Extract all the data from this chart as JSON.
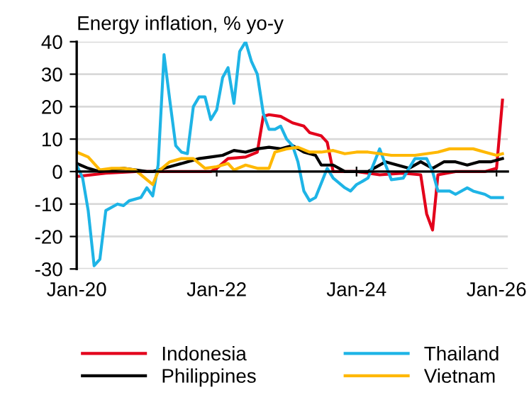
{
  "chart_data": {
    "type": "line",
    "title": "Energy inflation, % yo-y",
    "ylim": [
      -30,
      40
    ],
    "yticks": [
      -30,
      -20,
      -10,
      0,
      10,
      20,
      30,
      40
    ],
    "xlim": [
      "2020-01",
      "2026-03"
    ],
    "xticks": [
      {
        "value": "2020-01",
        "label": "Jan-20"
      },
      {
        "value": "2022-01",
        "label": "Jan-22"
      },
      {
        "value": "2024-01",
        "label": "Jan-24"
      },
      {
        "value": "2026-01",
        "label": "Jan-26"
      }
    ],
    "grid": "y",
    "legend": "bottom",
    "marker": "none",
    "line_style": "solid",
    "series": [
      {
        "name": "Indonesia",
        "color": "#e3001b",
        "x": [
          "2020-01",
          "2020-06",
          "2020-11",
          "2021-07",
          "2021-12",
          "2022-01",
          "2022-03",
          "2022-06",
          "2022-08",
          "2022-09",
          "2022-10",
          "2022-12",
          "2023-02",
          "2023-04",
          "2023-05",
          "2023-07",
          "2023-08",
          "2023-09",
          "2024-01",
          "2024-05",
          "2024-09",
          "2024-12",
          "2025-01",
          "2025-02",
          "2025-03",
          "2025-06",
          "2025-11",
          "2026-01",
          "2026-02"
        ],
        "values": [
          -1.5,
          -0.5,
          0,
          0,
          0,
          1,
          4,
          4.5,
          6,
          17,
          17.5,
          17,
          15,
          14,
          12,
          11,
          9,
          0,
          0,
          -1,
          -0.5,
          -1,
          -13,
          -18,
          -1,
          0,
          0,
          1,
          22
        ]
      },
      {
        "name": "Philippines",
        "color": "#000000",
        "x": [
          "2020-01",
          "2020-03",
          "2020-05",
          "2020-07",
          "2020-09",
          "2020-11",
          "2021-01",
          "2021-02",
          "2021-04",
          "2021-06",
          "2021-08",
          "2021-10",
          "2021-12",
          "2022-02",
          "2022-04",
          "2022-06",
          "2022-08",
          "2022-10",
          "2022-12",
          "2023-02",
          "2023-04",
          "2023-06",
          "2023-07",
          "2023-09",
          "2023-11",
          "2024-03",
          "2024-06",
          "2024-08",
          "2024-10",
          "2024-12",
          "2025-02",
          "2025-04",
          "2025-06",
          "2025-08",
          "2025-10",
          "2025-12",
          "2026-02"
        ],
        "values": [
          2.5,
          1,
          0,
          0.5,
          1,
          0.5,
          0,
          0,
          1,
          2,
          3,
          4,
          4.5,
          5,
          6.5,
          6,
          7,
          7.5,
          7,
          8,
          6,
          5,
          2,
          2,
          0,
          0,
          3,
          2,
          1,
          3,
          1,
          3,
          3,
          2,
          3,
          3,
          4
        ]
      },
      {
        "name": "Thailand",
        "color": "#1eb4e6",
        "x": [
          "2020-01",
          "2020-02",
          "2020-03",
          "2020-04",
          "2020-05",
          "2020-06",
          "2020-08",
          "2020-09",
          "2020-10",
          "2020-12",
          "2021-01",
          "2021-02",
          "2021-03",
          "2021-04",
          "2021-05",
          "2021-06",
          "2021-07",
          "2021-08",
          "2021-09",
          "2021-10",
          "2021-11",
          "2021-12",
          "2022-01",
          "2022-02",
          "2022-03",
          "2022-04",
          "2022-05",
          "2022-06",
          "2022-07",
          "2022-08",
          "2022-09",
          "2022-10",
          "2022-11",
          "2022-12",
          "2023-01",
          "2023-02",
          "2023-03",
          "2023-04",
          "2023-05",
          "2023-06",
          "2023-08",
          "2023-09",
          "2023-11",
          "2023-12",
          "2024-01",
          "2024-02",
          "2024-03",
          "2024-05",
          "2024-06",
          "2024-07",
          "2024-09",
          "2024-10",
          "2024-11",
          "2025-01",
          "2025-02",
          "2025-03",
          "2025-05",
          "2025-06",
          "2025-08",
          "2025-09",
          "2025-11",
          "2025-12",
          "2026-02"
        ],
        "values": [
          2,
          -2,
          -12,
          -29,
          -27,
          -12,
          -10,
          -10.5,
          -9,
          -8,
          -5,
          -7.5,
          2,
          36,
          22,
          8,
          6,
          5.5,
          20,
          23,
          23,
          16,
          19,
          29,
          32,
          21,
          37,
          40,
          34,
          30,
          18,
          13,
          13,
          14,
          10,
          8,
          3,
          -6,
          -9,
          -8,
          1,
          -2,
          -5,
          -6,
          -4,
          -3,
          -2,
          7,
          2,
          -2.5,
          -2,
          1,
          4,
          4,
          0,
          -6,
          -6,
          -7,
          -5,
          -6,
          -7,
          -8,
          -8
        ]
      },
      {
        "name": "Vietnam",
        "color": "#ffb800",
        "x": [
          "2020-01",
          "2020-03",
          "2020-05",
          "2020-07",
          "2020-09",
          "2020-11",
          "2021-02",
          "2021-03",
          "2021-05",
          "2021-07",
          "2021-09",
          "2021-11",
          "2022-01",
          "2022-03",
          "2022-04",
          "2022-06",
          "2022-08",
          "2022-10",
          "2022-11",
          "2023-01",
          "2023-03",
          "2023-05",
          "2023-07",
          "2023-09",
          "2023-11",
          "2024-01",
          "2024-03",
          "2024-05",
          "2024-07",
          "2024-09",
          "2024-11",
          "2025-01",
          "2025-03",
          "2025-05",
          "2025-07",
          "2025-09",
          "2025-11",
          "2026-01",
          "2026-02"
        ],
        "values": [
          6,
          4.5,
          0.5,
          1,
          1,
          0.5,
          -4,
          0,
          3,
          4,
          4,
          1,
          1.5,
          2.5,
          0.5,
          2,
          1,
          1,
          6,
          7,
          7.5,
          6,
          6,
          6.5,
          5.5,
          6,
          6,
          5.5,
          5,
          5,
          5,
          5.5,
          6,
          7,
          7,
          7,
          6,
          5,
          5.5
        ]
      }
    ]
  }
}
